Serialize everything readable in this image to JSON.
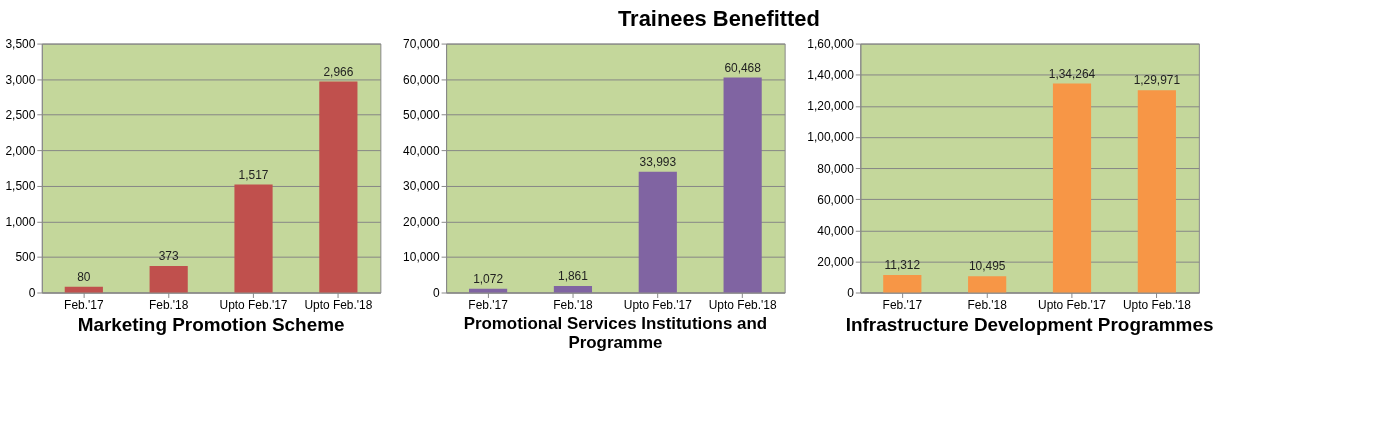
{
  "chart_data": [
    {
      "type": "other",
      "title": "Trainees Benefitted"
    },
    {
      "type": "bar",
      "title": "Marketing Promotion Scheme",
      "categories": [
        "Feb.'17",
        "Feb.'18",
        "Upto Feb.'17",
        "Upto Feb.'18"
      ],
      "values": [
        80,
        373,
        1517,
        2966
      ],
      "value_labels": [
        "80",
        "373",
        "1,517",
        "2,966"
      ],
      "color": "#c0504d",
      "ylim": [
        0,
        3500
      ],
      "yticks": [
        0,
        500,
        {
          "value": 1000,
          "label": "1,000"
        },
        {
          "value": 1500,
          "label": "1,500"
        },
        {
          "value": 2000,
          "label": "2,000"
        },
        {
          "value": 2500,
          "label": "2,500"
        },
        {
          "value": 3000,
          "label": "3,000"
        },
        {
          "value": 3500,
          "label": "3,500"
        }
      ],
      "grid": "y"
    },
    {
      "type": "bar",
      "title": "Promotional Services Institutions and Programme",
      "categories": [
        "Feb.'17",
        "Feb.'18",
        "Upto Feb.'17",
        "Upto Feb.'18"
      ],
      "values": [
        1072,
        1861,
        33993,
        60468
      ],
      "value_labels": [
        "1,072",
        "1,861",
        "33,993",
        "60,468"
      ],
      "color": "#8064a2",
      "ylim": [
        0,
        70000
      ],
      "yticks": [
        0,
        {
          "value": 10000,
          "label": "10,000"
        },
        {
          "value": 20000,
          "label": "20,000"
        },
        {
          "value": 30000,
          "label": "30,000"
        },
        {
          "value": 40000,
          "label": "40,000"
        },
        {
          "value": 50000,
          "label": "50,000"
        },
        {
          "value": 60000,
          "label": "60,000"
        },
        {
          "value": 70000,
          "label": "70,000"
        }
      ],
      "grid": "y"
    },
    {
      "type": "bar",
      "title": "Infrastructure Development Programmes",
      "categories": [
        "Feb.'17",
        "Feb.'18",
        "Upto Feb.'17",
        "Upto Feb.'18"
      ],
      "values": [
        11312,
        10495,
        134264,
        129971
      ],
      "value_labels": [
        "11,312",
        "10,495",
        "1,34,264",
        "1,29,971"
      ],
      "color": "#f79646",
      "ylim": [
        0,
        160000
      ],
      "yticks": [
        0,
        {
          "value": 20000,
          "label": "20,000"
        },
        {
          "value": 40000,
          "label": "40,000"
        },
        {
          "value": 60000,
          "label": "60,000"
        },
        {
          "value": 80000,
          "label": "80,000"
        },
        {
          "value": 100000,
          "label": "1,00,000"
        },
        {
          "value": 120000,
          "label": "1,20,000"
        },
        {
          "value": 140000,
          "label": "1,40,000"
        },
        {
          "value": 160000,
          "label": "1,60,000"
        }
      ],
      "grid": "y"
    }
  ]
}
